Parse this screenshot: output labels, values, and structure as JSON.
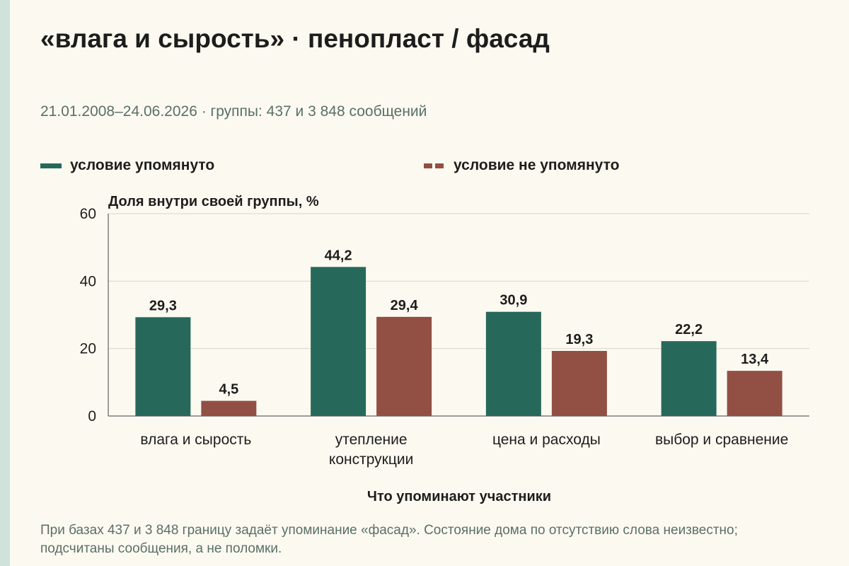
{
  "header": {
    "title": "«влага и сырость» · пенопласт / фасад",
    "subtitle": "21.01.2008–24.06.2026 · группы: 437 и 3 848 сообщений"
  },
  "footnote": "При базах 437 и 3 848 границу задаёт упоминание «фасад». Состояние дома по отсутствию слова неизвестно; подсчитаны сообщения, а не поломки.",
  "colors": {
    "mentioned": "#26695a",
    "not_mentioned": "#924f43",
    "grid": "#d9d6cc",
    "axis": "#7d7d7d"
  },
  "chart_data": {
    "type": "bar",
    "title": "«влага и сырость» · пенопласт / фасад",
    "subtitle": "21.01.2008–24.06.2026 · группы: 437 и 3 848 сообщений",
    "xlabel": "Что упоминают участники",
    "ylabel": "Доля внутри своей группы, %",
    "ylim": [
      0,
      60
    ],
    "yticks": [
      "0",
      "20",
      "40",
      "60"
    ],
    "grid": true,
    "legend_position": "top",
    "categories": [
      [
        "влага и сырость"
      ],
      [
        "утепление",
        "конструкции"
      ],
      [
        "цена и расходы"
      ],
      [
        "выбор и сравнение"
      ]
    ],
    "series": [
      {
        "name": "условие упомянуто",
        "values": [
          29.3,
          44.2,
          30.9,
          22.2
        ],
        "labels": [
          "29,3",
          "44,2",
          "30,9",
          "22,2"
        ]
      },
      {
        "name": "условие не упомянуто",
        "values": [
          4.5,
          29.4,
          19.3,
          13.4
        ],
        "labels": [
          "4,5",
          "29,4",
          "19,3",
          "13,4"
        ]
      }
    ]
  }
}
